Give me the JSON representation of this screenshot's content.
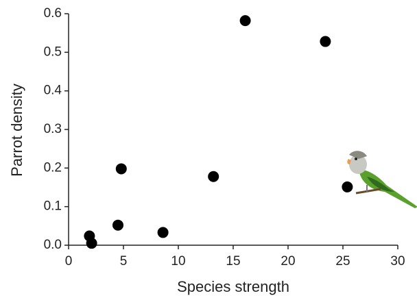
{
  "chart_data": {
    "type": "scatter",
    "xlabel": "Species strength",
    "ylabel": "Parrot density",
    "x": [
      1.9,
      2.1,
      4.5,
      4.8,
      8.6,
      13.2,
      16.1,
      23.4,
      25.4
    ],
    "values": [
      0.024,
      0.005,
      0.052,
      0.198,
      0.033,
      0.178,
      0.582,
      0.528,
      0.151
    ],
    "color": "#000000",
    "xlim": [
      0,
      30
    ],
    "xticks": [
      0,
      5,
      10,
      15,
      20,
      25,
      30
    ],
    "ylim": [
      0,
      0.6
    ],
    "yticks": [
      {
        "value": 0,
        "label": "0.0"
      },
      0.1,
      0.2,
      0.3,
      0.4,
      0.5,
      0.6
    ],
    "grid": false
  }
}
